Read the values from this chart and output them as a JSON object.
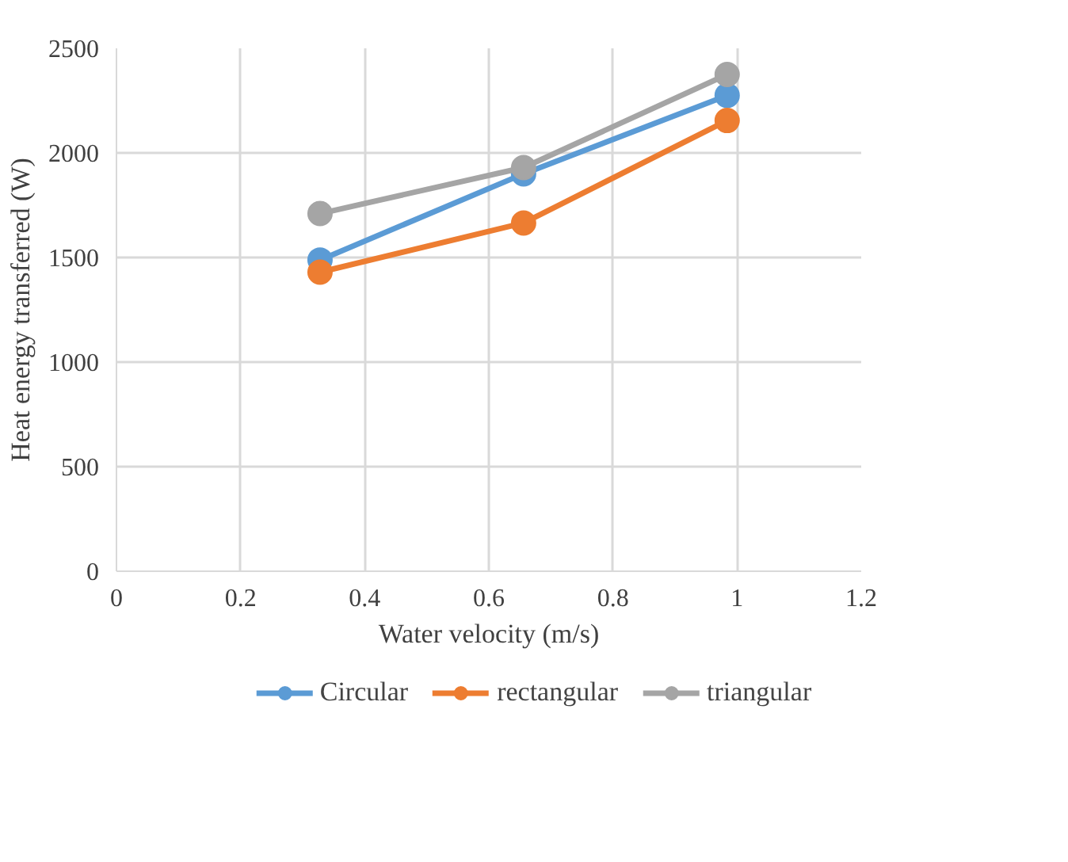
{
  "chart_data": {
    "type": "line",
    "xlabel": "Water velocity (m/s)",
    "ylabel": "Heat energy transferred (W)",
    "x": [
      0.328,
      0.656,
      0.984
    ],
    "series": [
      {
        "name": "Circular",
        "color": "#5b9bd5",
        "values": [
          1488,
          1900,
          2275
        ]
      },
      {
        "name": "rectangular",
        "color": "#ed7d31",
        "values": [
          1430,
          1665,
          2155
        ]
      },
      {
        "name": "triangular",
        "color": "#a5a5a5",
        "values": [
          1710,
          1930,
          2375
        ]
      }
    ],
    "xlim": [
      0,
      1.2
    ],
    "xticks": [
      0,
      0.2,
      0.4,
      0.6,
      0.8,
      1,
      1.2
    ],
    "ylim": [
      0,
      2500
    ],
    "yticks": [
      0,
      500,
      1000,
      1500,
      2000,
      2500
    ],
    "grid": true,
    "legend": "bottom",
    "marker": "circle",
    "line_style": "solid"
  }
}
